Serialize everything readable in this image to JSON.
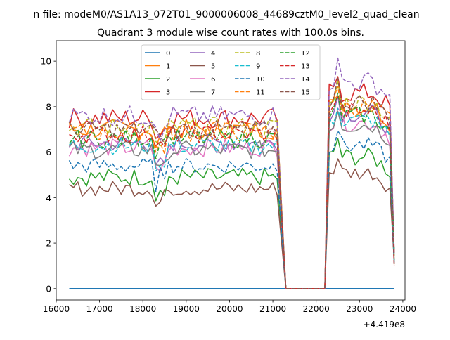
{
  "figure": {
    "suptitle": "n file: modeM0/AS1A13_072T01_9000006008_44689cztM0_level2_quad_clean",
    "title": "Quadrant 3 module wise count rates with 100.0s bins.",
    "offset_label": "+4.419e8"
  },
  "chart_data": {
    "type": "line",
    "title": "Quadrant 3 module wise count rates with 100.0s bins.",
    "xlabel": "",
    "ylabel": "",
    "x_offset": 441900000,
    "xlim": [
      16000,
      24050
    ],
    "ylim": [
      -0.5,
      10.9
    ],
    "xticks": [
      16000,
      17000,
      18000,
      19000,
      20000,
      21000,
      22000,
      23000,
      24000
    ],
    "yticks": [
      0,
      2,
      4,
      6,
      8,
      10
    ],
    "legend": "upper-center, 4 columns",
    "grid": false,
    "segments": [
      {
        "x_start": 16300,
        "x_end": 21100,
        "dx": 100
      },
      {
        "x_start": 22300,
        "x_end": 23800,
        "dx": 100
      }
    ],
    "gap_x": [
      21300,
      22200
    ],
    "series": [
      {
        "name": "0",
        "color": "#1f77b4",
        "dash": "solid",
        "base1": 0.0,
        "base2": 0.0,
        "amp": 0.0
      },
      {
        "name": "1",
        "color": "#ff7f0e",
        "dash": "solid",
        "base1": 7.0,
        "base2": 8.0,
        "amp": 0.45
      },
      {
        "name": "2",
        "color": "#2ca02c",
        "dash": "solid",
        "base1": 4.9,
        "base2": 5.8,
        "amp": 0.4
      },
      {
        "name": "3",
        "color": "#d62728",
        "dash": "solid",
        "base1": 7.5,
        "base2": 8.6,
        "amp": 0.45
      },
      {
        "name": "4",
        "color": "#9467bd",
        "dash": "solid",
        "base1": 6.4,
        "base2": 7.7,
        "amp": 0.4
      },
      {
        "name": "5",
        "color": "#8c564b",
        "dash": "solid",
        "base1": 4.4,
        "base2": 5.1,
        "amp": 0.35
      },
      {
        "name": "6",
        "color": "#e377c2",
        "dash": "solid",
        "base1": 6.2,
        "base2": 7.3,
        "amp": 0.4
      },
      {
        "name": "7",
        "color": "#7f7f7f",
        "dash": "solid",
        "base1": 6.1,
        "base2": 7.2,
        "amp": 0.4
      },
      {
        "name": "8",
        "color": "#bcbd22",
        "dash": "dashed",
        "base1": 7.1,
        "base2": 8.2,
        "amp": 0.45
      },
      {
        "name": "9",
        "color": "#17becf",
        "dash": "dashed",
        "base1": 6.3,
        "base2": 7.4,
        "amp": 0.4
      },
      {
        "name": "10",
        "color": "#1f77b4",
        "dash": "dashed",
        "base1": 5.4,
        "base2": 6.3,
        "amp": 0.35
      },
      {
        "name": "11",
        "color": "#ff7f0e",
        "dash": "dashed",
        "base1": 6.9,
        "base2": 8.0,
        "amp": 0.45
      },
      {
        "name": "12",
        "color": "#2ca02c",
        "dash": "dashed",
        "base1": 6.6,
        "base2": 7.6,
        "amp": 0.4
      },
      {
        "name": "13",
        "color": "#d62728",
        "dash": "dashed",
        "base1": 6.8,
        "base2": 7.8,
        "amp": 0.4
      },
      {
        "name": "14",
        "color": "#9467bd",
        "dash": "dashed",
        "base1": 7.6,
        "base2": 9.1,
        "amp": 0.45
      },
      {
        "name": "15",
        "color": "#8c564b",
        "dash": "dashed",
        "base1": 7.0,
        "base2": 8.2,
        "amp": 0.4
      }
    ]
  }
}
